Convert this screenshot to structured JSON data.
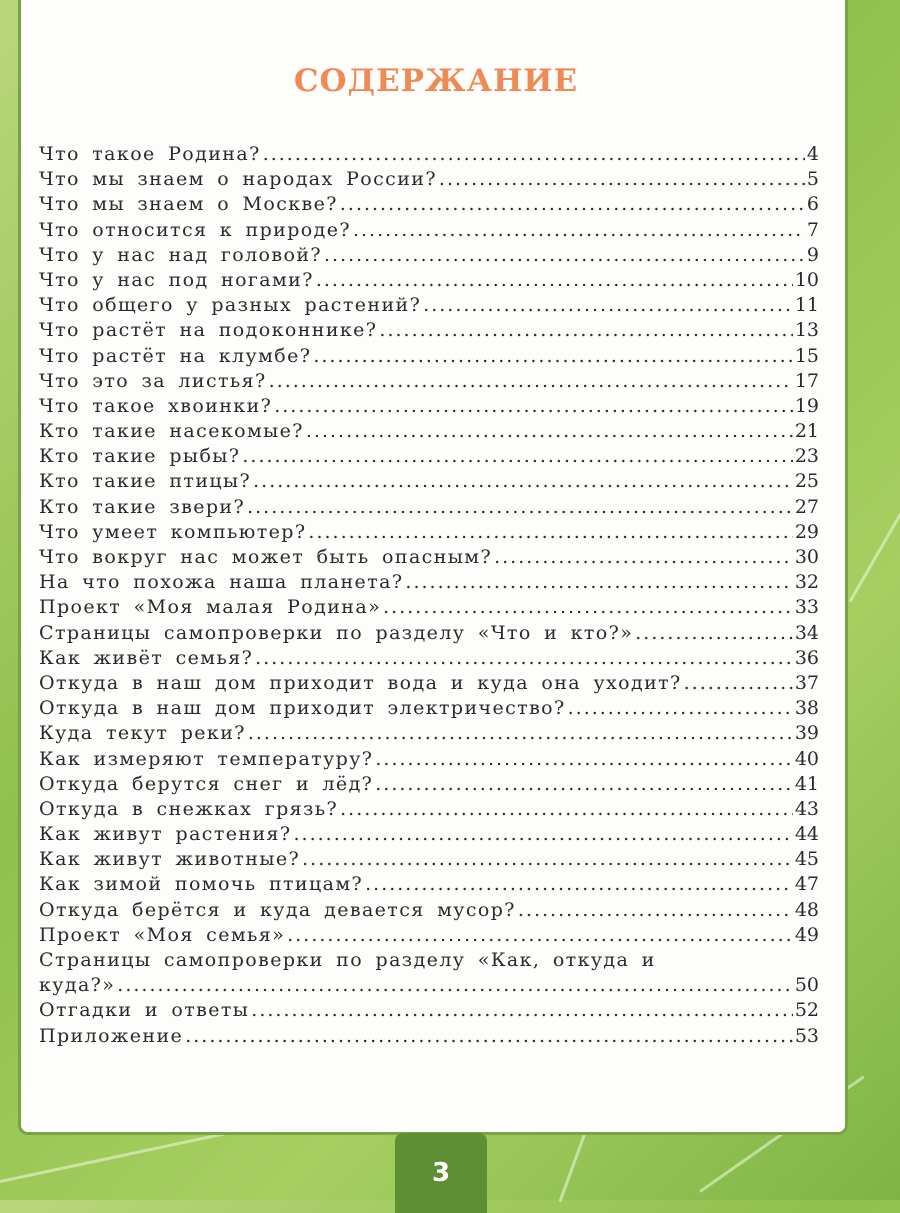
{
  "title": "СОДЕРЖАНИЕ",
  "entries": [
    {
      "t": "Что такое Родина?",
      "p": "4"
    },
    {
      "t": "Что мы знаем о народах России?",
      "p": "5"
    },
    {
      "t": "Что мы знаем о Москве?",
      "p": "6"
    },
    {
      "t": "Что относится к природе?",
      "p": "7"
    },
    {
      "t": "Что у нас над головой?",
      "p": "9"
    },
    {
      "t": "Что у нас под ногами?",
      "p": "10"
    },
    {
      "t": "Что общего у разных растений?",
      "p": "11"
    },
    {
      "t": "Что растёт на подоконнике?",
      "p": "13"
    },
    {
      "t": "Что растёт на клумбе?",
      "p": "15"
    },
    {
      "t": "Что это за листья?",
      "p": "17"
    },
    {
      "t": "Что такое хвоинки?",
      "p": "19"
    },
    {
      "t": "Кто такие насекомые?",
      "p": "21"
    },
    {
      "t": "Кто такие рыбы?",
      "p": "23"
    },
    {
      "t": "Кто такие птицы?",
      "p": "25"
    },
    {
      "t": "Кто такие звери?",
      "p": "27"
    },
    {
      "t": "Что умеет компьютер?",
      "p": "29"
    },
    {
      "t": "Что вокруг нас может быть опасным?",
      "p": "30"
    },
    {
      "t": "На что похожа наша планета?",
      "p": "32"
    },
    {
      "t": "Проект «Моя малая Родина»",
      "p": "33"
    },
    {
      "t": "Страницы самопроверки по разделу «Что и кто?»",
      "p": "34"
    },
    {
      "t": "Как живёт семья?",
      "p": "36"
    },
    {
      "t": "Откуда в наш дом приходит вода и куда она уходит?",
      "p": "37"
    },
    {
      "t": "Откуда в наш дом приходит электричество?",
      "p": "38"
    },
    {
      "t": "Куда текут реки?",
      "p": "39"
    },
    {
      "t": "Как измеряют температуру?",
      "p": "40"
    },
    {
      "t": "Откуда берутся снег и лёд?",
      "p": "41"
    },
    {
      "t": "Откуда в снежках грязь?",
      "p": "43"
    },
    {
      "t": "Как живут растения?",
      "p": "44"
    },
    {
      "t": "Как живут животные?",
      "p": "45"
    },
    {
      "t": "Как зимой помочь птицам?",
      "p": "47"
    },
    {
      "t": "Откуда берётся и куда девается мусор?",
      "p": "48"
    },
    {
      "t": "Проект «Моя семья»",
      "p": "49"
    },
    {
      "t": "Страницы самопроверки по разделу «Как, откуда и",
      "p": ""
    },
    {
      "t": "куда?»",
      "p": "50"
    },
    {
      "t": "Отгадки и ответы",
      "p": "52"
    },
    {
      "t": "Приложение",
      "p": "53"
    }
  ],
  "page_number": "3"
}
